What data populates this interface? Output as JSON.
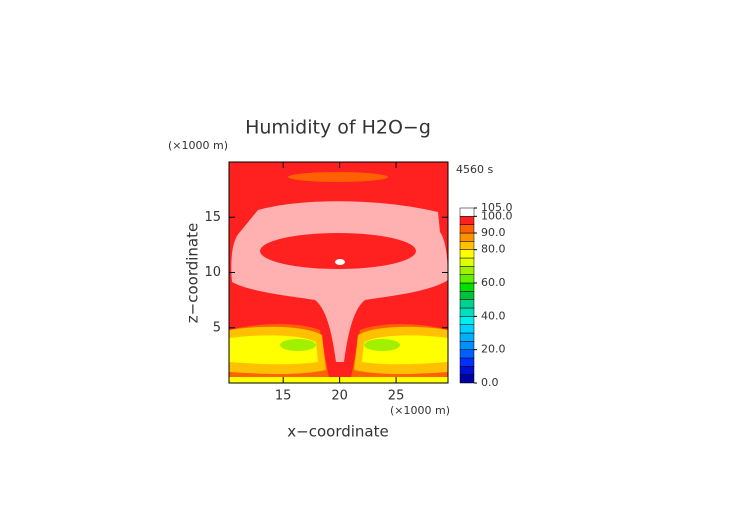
{
  "chart_data": {
    "type": "contour",
    "title": "Humidity of H2O−g",
    "time_label": "4560 s",
    "x_label": "x−coordinate",
    "y_label": "z−coordinate",
    "x_unit": "(×1000 m)",
    "y_unit": "(×1000 m)",
    "xlim": [
      10.2,
      29.6
    ],
    "xticks": [
      15,
      20,
      25
    ],
    "ylim": [
      0,
      20
    ],
    "yticks": [
      5,
      10,
      15
    ],
    "grid": false,
    "colorbar": {
      "lim": [
        0,
        105
      ],
      "levels": [
        0,
        5,
        10,
        15,
        20,
        25,
        30,
        35,
        40,
        45,
        50,
        55,
        60,
        65,
        70,
        75,
        80,
        85,
        90,
        95,
        100,
        105
      ],
      "colors": [
        "#0000a0",
        "#0010d0",
        "#0030ff",
        "#0060ff",
        "#0090ff",
        "#00b0ff",
        "#00d0ff",
        "#00f0f0",
        "#00e0c0",
        "#00d090",
        "#00c040",
        "#00e000",
        "#60f000",
        "#a0f000",
        "#e0ff00",
        "#ffff00",
        "#ffc000",
        "#ff9000",
        "#ff6000",
        "#ff2020",
        "#ffffff"
      ],
      "ticks": [
        {
          "value": 0,
          "label": "0.0"
        },
        {
          "value": 20,
          "label": "20.0"
        },
        {
          "value": 40,
          "label": "40.0"
        },
        {
          "value": 60,
          "label": "60.0"
        },
        {
          "value": 80,
          "label": "80.0"
        },
        {
          "value": 90,
          "label": "90.0"
        },
        {
          "value": 100,
          "label": "100.0"
        },
        {
          "value": 105,
          "label": "105.0"
        }
      ]
    }
  }
}
